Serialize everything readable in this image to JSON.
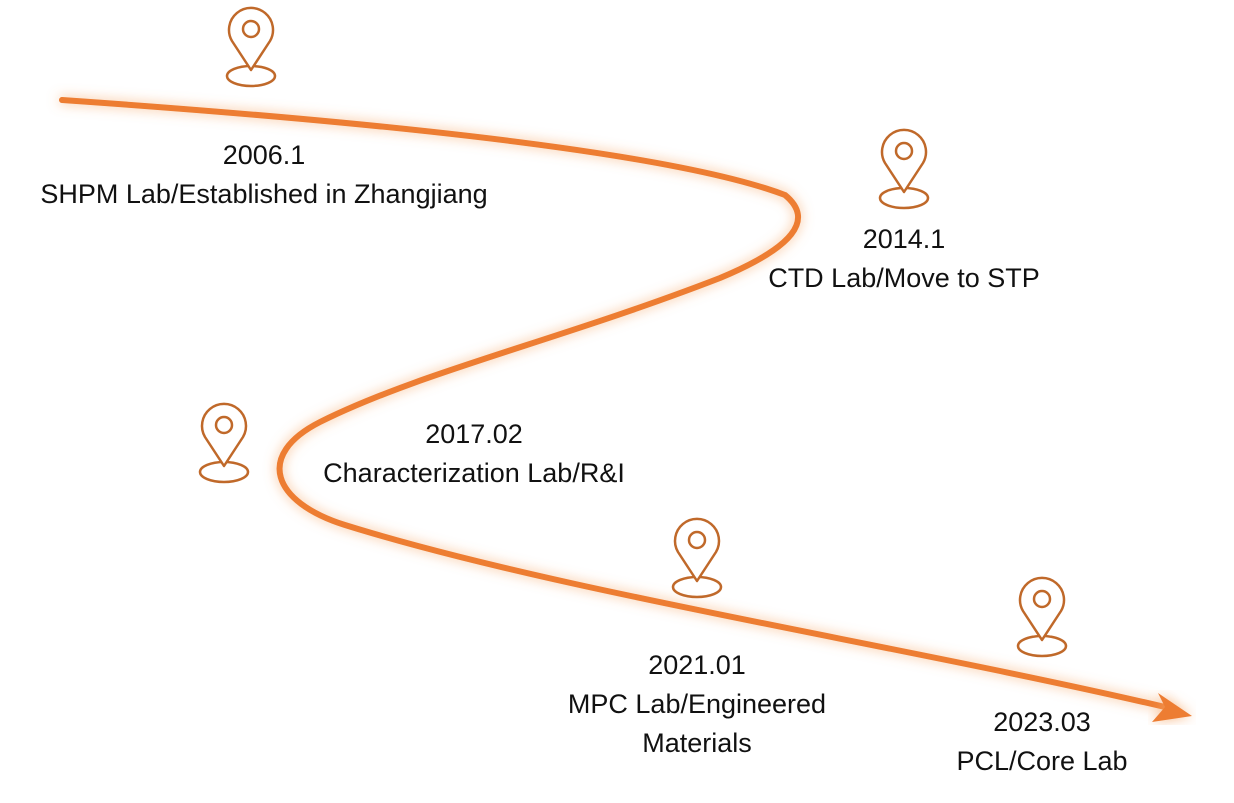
{
  "milestones": [
    {
      "date": "2006.1",
      "label": "SHPM Lab/Established in Zhangjiang"
    },
    {
      "date": "2014.1",
      "label": "CTD Lab/Move to STP"
    },
    {
      "date": "2017.02",
      "label": "Characterization Lab/R&I"
    },
    {
      "date": "2021.01",
      "label": "MPC Lab/Engineered Materials"
    },
    {
      "date": "2023.03",
      "label": "PCL/Core Lab"
    }
  ]
}
